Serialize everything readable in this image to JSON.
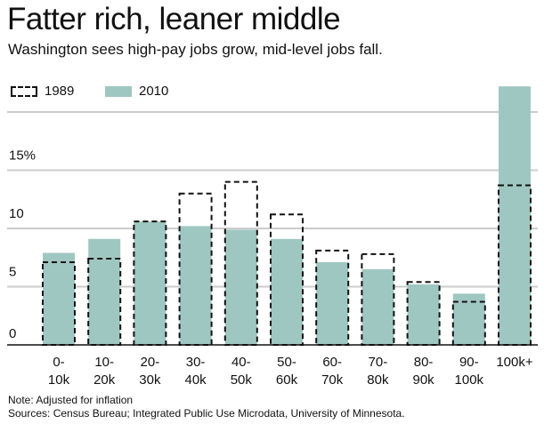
{
  "title": "Fatter rich, leaner middle",
  "subtitle": "Washington sees high-pay jobs grow, mid-level jobs fall.",
  "legend": {
    "series_1989": "1989",
    "series_2010": "2010"
  },
  "note": "Note: Adjusted for inflation",
  "source": "Sources: Census Bureau; Integrated Public Use Microdata, University of Minnesota.",
  "colors": {
    "bar_2010": "#9fc7c1",
    "outline_1989": "#111111",
    "gridline": "#cccccc"
  },
  "chart_data": {
    "type": "bar",
    "categories": [
      [
        "0-",
        "10k"
      ],
      [
        "10-",
        "20k"
      ],
      [
        "20-",
        "30k"
      ],
      [
        "30-",
        "40k"
      ],
      [
        "40-",
        "50k"
      ],
      [
        "50-",
        "60k"
      ],
      [
        "60-",
        "70k"
      ],
      [
        "70-",
        "80k"
      ],
      [
        "80-",
        "90k"
      ],
      [
        "90-",
        "100k"
      ],
      [
        "100k+"
      ]
    ],
    "series": [
      {
        "name": "1989",
        "style": "dashed-outline",
        "values": [
          7.1,
          7.4,
          10.6,
          13.0,
          14.0,
          11.2,
          8.1,
          7.8,
          5.4,
          3.7,
          13.7
        ]
      },
      {
        "name": "2010",
        "style": "solid",
        "values": [
          7.9,
          9.1,
          10.6,
          10.2,
          9.9,
          9.1,
          7.1,
          6.5,
          5.2,
          4.4,
          22.2
        ]
      }
    ],
    "yticks": [
      0,
      5,
      10,
      15
    ],
    "ytick_labels": [
      "0",
      "5",
      "10",
      "15%"
    ],
    "ylim": [
      0,
      20
    ],
    "grid": true,
    "legend_position": "top-left"
  }
}
